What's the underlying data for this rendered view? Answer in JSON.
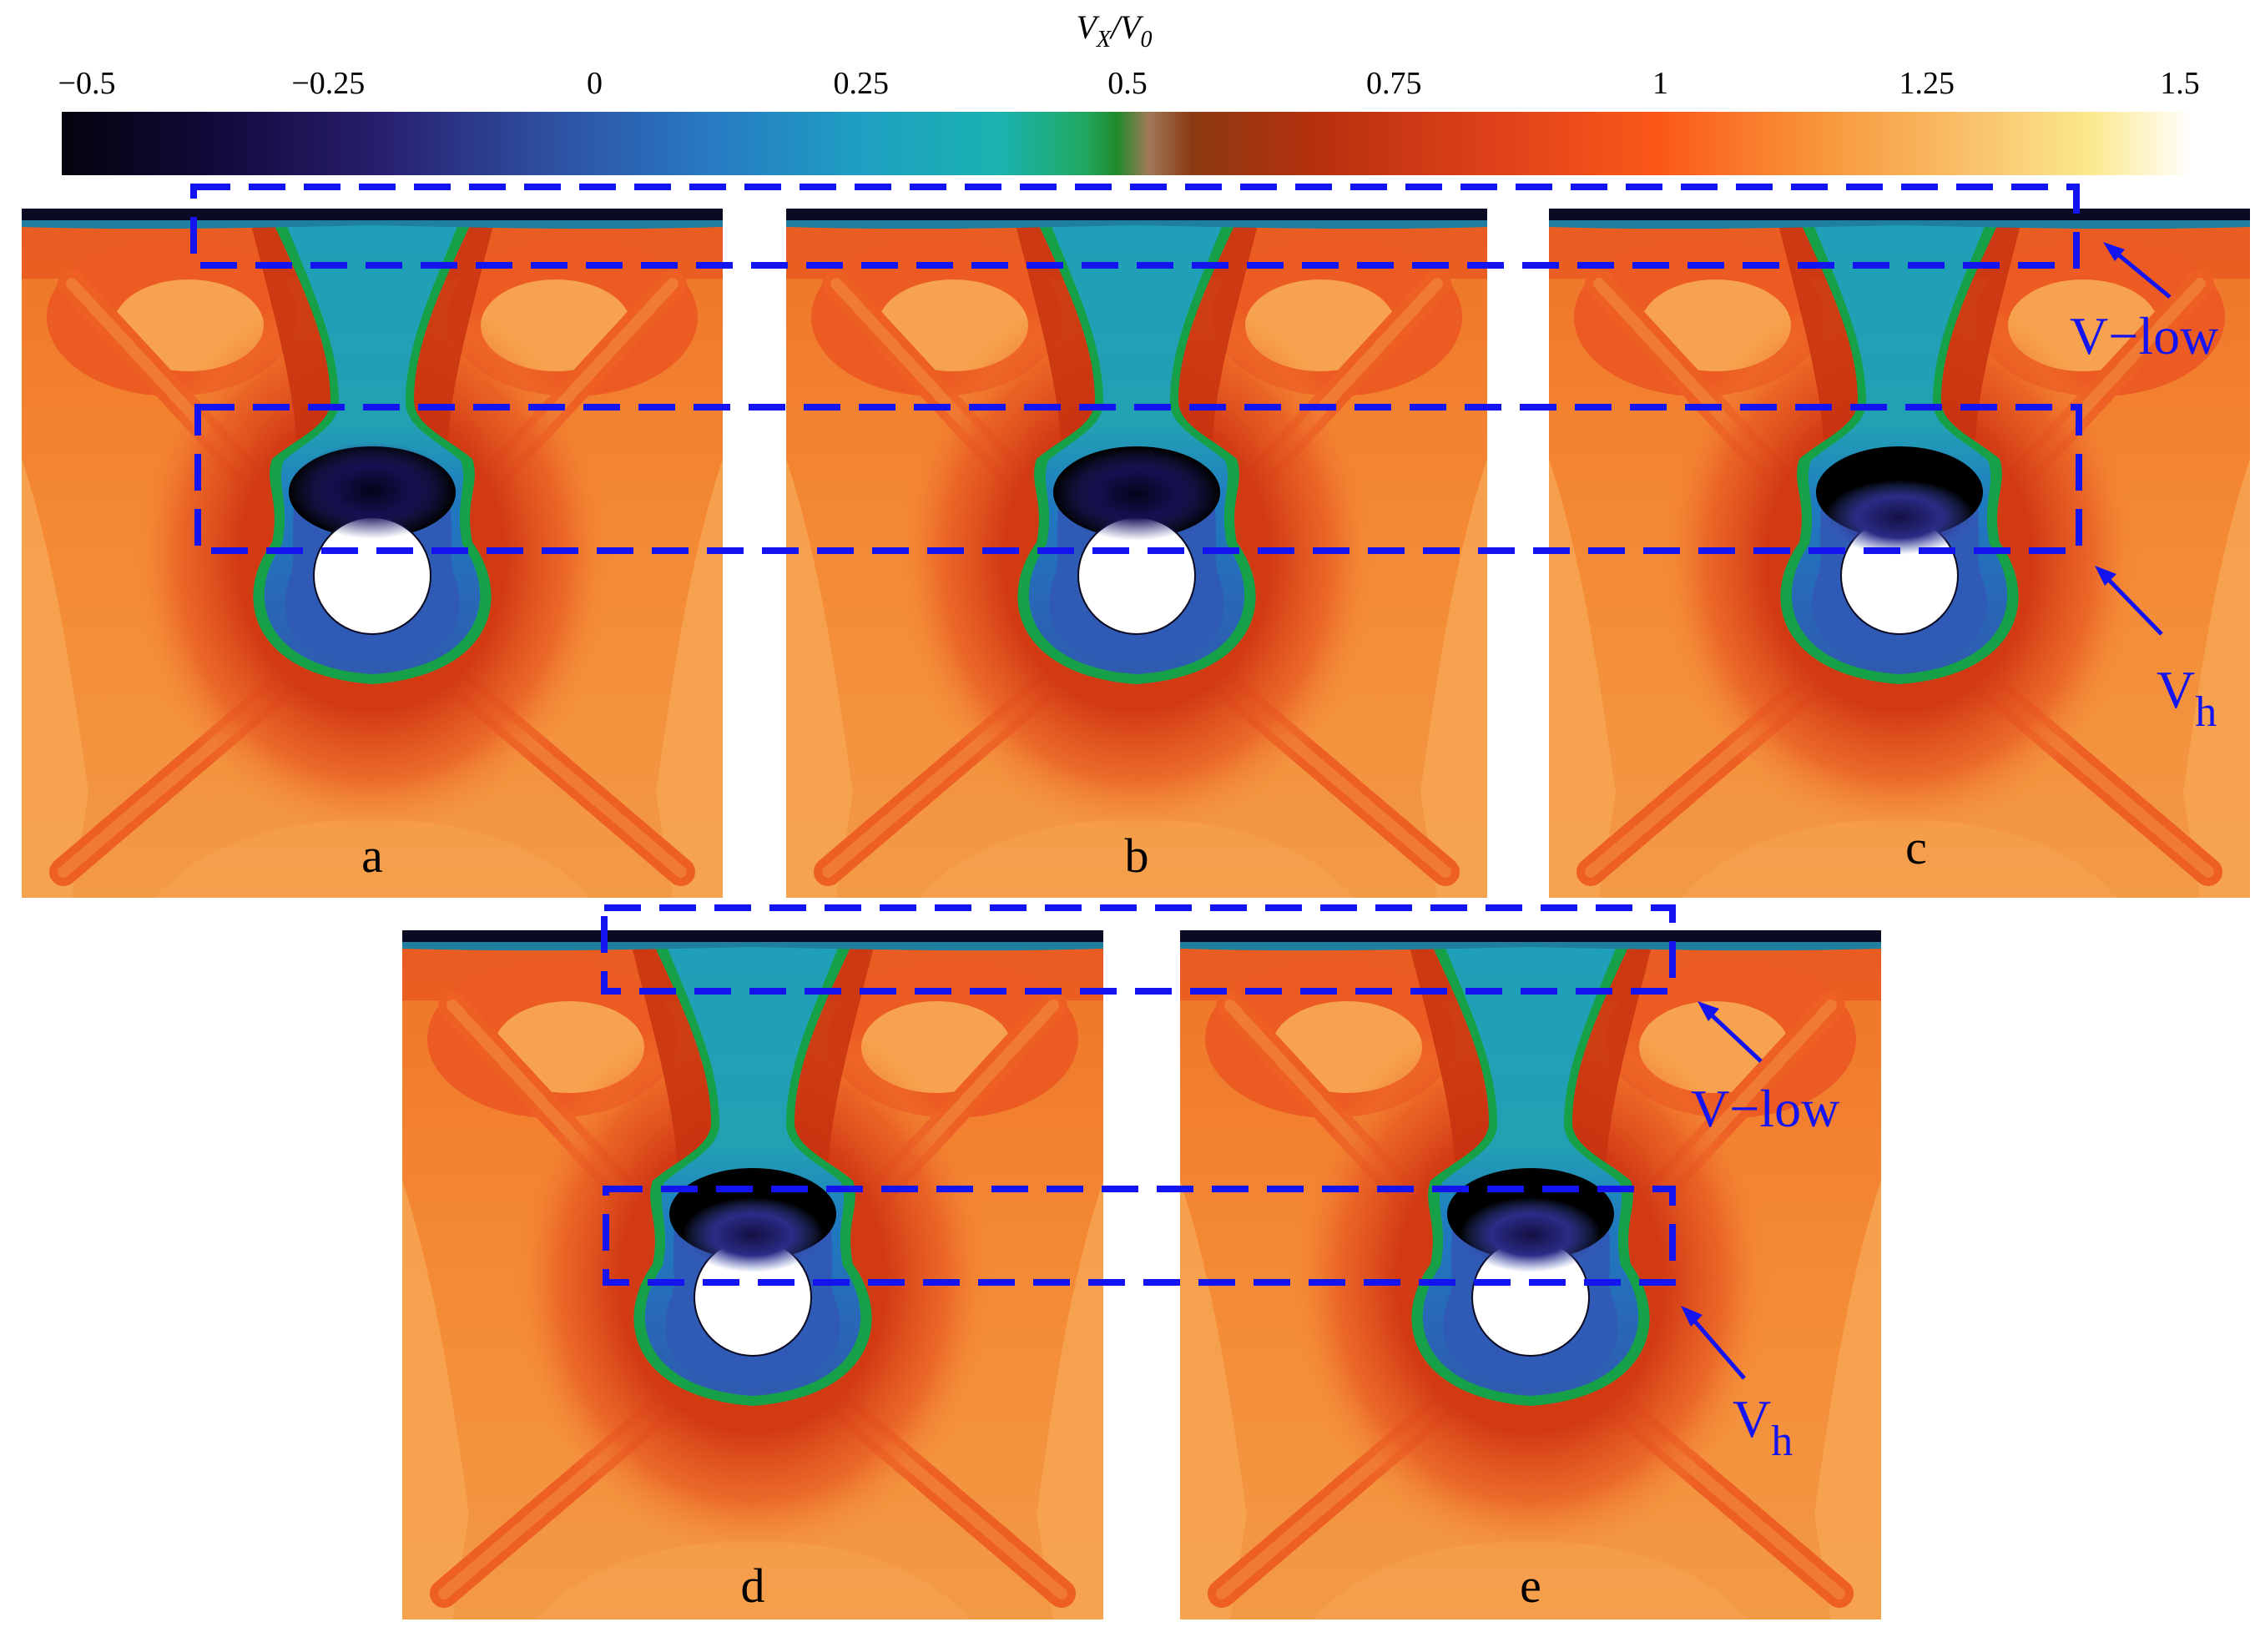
{
  "colorbar": {
    "title_parts": [
      "V",
      "X",
      "/",
      "V",
      "0"
    ],
    "tick_labels": [
      "−0.5",
      "−0.25",
      "0",
      "0.25",
      "0.5",
      "0.75",
      "1",
      "1.25",
      "1.5"
    ],
    "tick_values": [
      -0.5,
      -0.25,
      0,
      0.25,
      0.5,
      0.75,
      1,
      1.25,
      1.5
    ],
    "range": [
      -0.5,
      1.5
    ],
    "stops": [
      {
        "value": -0.5,
        "color": "#05030d"
      },
      {
        "value": -0.35,
        "color": "#120a3d"
      },
      {
        "value": -0.2,
        "color": "#281f6e"
      },
      {
        "value": -0.05,
        "color": "#2e4d9e"
      },
      {
        "value": 0.1,
        "color": "#2878c2"
      },
      {
        "value": 0.25,
        "color": "#1e9fc2"
      },
      {
        "value": 0.38,
        "color": "#1ab3b0"
      },
      {
        "value": 0.46,
        "color": "#20a860"
      },
      {
        "value": 0.49,
        "color": "#1f8a2a"
      },
      {
        "value": 0.52,
        "color": "#a07858"
      },
      {
        "value": 0.56,
        "color": "#8a3a12"
      },
      {
        "value": 0.68,
        "color": "#b8300e"
      },
      {
        "value": 0.85,
        "color": "#e0421a"
      },
      {
        "value": 1.0,
        "color": "#fb5818"
      },
      {
        "value": 1.15,
        "color": "#f8963a"
      },
      {
        "value": 1.3,
        "color": "#f9c46e"
      },
      {
        "value": 1.4,
        "color": "#fbe88a"
      },
      {
        "value": 1.5,
        "color": "#ffffff"
      }
    ]
  },
  "panels": [
    {
      "label": "a",
      "wake_core": "#0d0a30",
      "core_level": "strong"
    },
    {
      "label": "b",
      "wake_core": "#0d0a30",
      "core_level": "strong"
    },
    {
      "label": "c",
      "wake_core": "#26206a",
      "core_level": "medium"
    },
    {
      "label": "d",
      "wake_core": "#26206a",
      "core_level": "medium"
    },
    {
      "label": "e",
      "wake_core": "#26206a",
      "core_level": "medium"
    }
  ],
  "annotations": {
    "v_low_top": "V−low",
    "v_h_top_main": "V",
    "v_h_top_sub": "h",
    "v_low_bottom": "V−low",
    "v_h_bottom_main": "V",
    "v_h_bottom_sub": "h"
  },
  "colors": {
    "annotation_blue": "#1414f0",
    "field_base": "#f48a35",
    "field_light": "#f6a452",
    "field_dark": "#e2461c",
    "free_surface": "#0a0a22",
    "cylinder": "#ffffff"
  }
}
